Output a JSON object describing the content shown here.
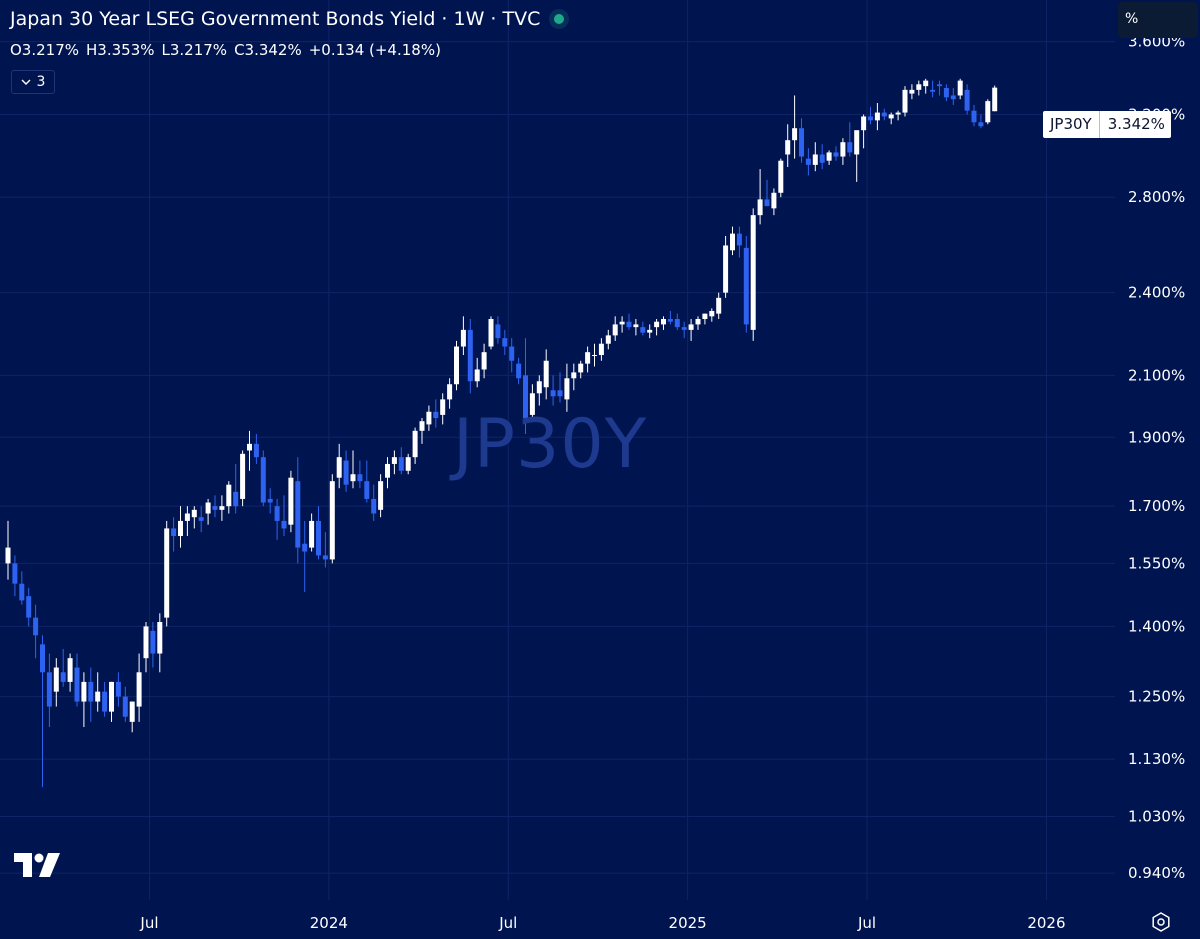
{
  "header": {
    "title": "Japan 30 Year LSEG Government Bonds Yield · 1W · TVC",
    "ohlc": {
      "open": "O3.217%",
      "high": "H3.353%",
      "low": "L3.217%",
      "close": "C3.342%",
      "change": "+0.134 (+4.18%)"
    },
    "indicator_count": "3"
  },
  "unit_label": "%",
  "watermark": "JP30Y",
  "last_price": {
    "symbol": "JP30Y",
    "value": "3.342%"
  },
  "colors": {
    "background": "#001450",
    "up_candle": "#ffffff",
    "down_candle": "#2d63f0",
    "grid": "#0f2466",
    "live_dot": "#1fa88a"
  },
  "icons": [
    "chevron-down-icon",
    "tradingview-logo",
    "settings-icon"
  ],
  "chart_data": {
    "type": "candlestick",
    "interval": "1W",
    "y_scale": "log",
    "ylim": [
      0.9,
      3.85
    ],
    "yticks": [
      {
        "v": 3.6,
        "l": "3.600%"
      },
      {
        "v": 3.2,
        "l": "3.200%"
      },
      {
        "v": 2.8,
        "l": "2.800%"
      },
      {
        "v": 2.4,
        "l": "2.400%"
      },
      {
        "v": 2.1,
        "l": "2.100%"
      },
      {
        "v": 1.9,
        "l": "1.900%"
      },
      {
        "v": 1.7,
        "l": "1.700%"
      },
      {
        "v": 1.55,
        "l": "1.550%"
      },
      {
        "v": 1.4,
        "l": "1.400%"
      },
      {
        "v": 1.25,
        "l": "1.250%"
      },
      {
        "v": 1.13,
        "l": "1.130%"
      },
      {
        "v": 1.03,
        "l": "1.030%"
      },
      {
        "v": 0.94,
        "l": "0.940%"
      }
    ],
    "xticks": [
      {
        "i": 20.5,
        "l": "Jul"
      },
      {
        "i": 46.5,
        "l": "2024"
      },
      {
        "i": 72.5,
        "l": "Jul"
      },
      {
        "i": 98.5,
        "l": "2025"
      },
      {
        "i": 124.5,
        "l": "Jul"
      },
      {
        "i": 150.5,
        "l": "2026"
      }
    ],
    "ohlc": [
      [
        1.55,
        1.66,
        1.51,
        1.59
      ],
      [
        1.55,
        1.57,
        1.47,
        1.5
      ],
      [
        1.5,
        1.53,
        1.45,
        1.46
      ],
      [
        1.47,
        1.49,
        1.4,
        1.42
      ],
      [
        1.42,
        1.45,
        1.33,
        1.38
      ],
      [
        1.36,
        1.38,
        1.08,
        1.3
      ],
      [
        1.3,
        1.34,
        1.19,
        1.23
      ],
      [
        1.26,
        1.33,
        1.23,
        1.31
      ],
      [
        1.3,
        1.35,
        1.27,
        1.28
      ],
      [
        1.28,
        1.34,
        1.26,
        1.33
      ],
      [
        1.31,
        1.34,
        1.23,
        1.24
      ],
      [
        1.24,
        1.3,
        1.19,
        1.28
      ],
      [
        1.28,
        1.31,
        1.2,
        1.24
      ],
      [
        1.24,
        1.3,
        1.22,
        1.26
      ],
      [
        1.26,
        1.28,
        1.21,
        1.22
      ],
      [
        1.22,
        1.28,
        1.2,
        1.28
      ],
      [
        1.28,
        1.3,
        1.23,
        1.25
      ],
      [
        1.25,
        1.27,
        1.2,
        1.21
      ],
      [
        1.2,
        1.24,
        1.18,
        1.24
      ],
      [
        1.23,
        1.34,
        1.2,
        1.3
      ],
      [
        1.33,
        1.41,
        1.3,
        1.4
      ],
      [
        1.39,
        1.41,
        1.31,
        1.34
      ],
      [
        1.34,
        1.43,
        1.3,
        1.41
      ],
      [
        1.42,
        1.66,
        1.4,
        1.64
      ],
      [
        1.64,
        1.67,
        1.58,
        1.62
      ],
      [
        1.62,
        1.7,
        1.59,
        1.66
      ],
      [
        1.66,
        1.7,
        1.62,
        1.68
      ],
      [
        1.67,
        1.7,
        1.64,
        1.69
      ],
      [
        1.67,
        1.7,
        1.63,
        1.66
      ],
      [
        1.68,
        1.72,
        1.65,
        1.71
      ],
      [
        1.7,
        1.73,
        1.67,
        1.69
      ],
      [
        1.69,
        1.73,
        1.66,
        1.7
      ],
      [
        1.7,
        1.77,
        1.68,
        1.76
      ],
      [
        1.74,
        1.82,
        1.68,
        1.7
      ],
      [
        1.72,
        1.86,
        1.7,
        1.85
      ],
      [
        1.86,
        1.92,
        1.8,
        1.88
      ],
      [
        1.88,
        1.91,
        1.82,
        1.84
      ],
      [
        1.84,
        1.86,
        1.7,
        1.71
      ],
      [
        1.72,
        1.75,
        1.68,
        1.71
      ],
      [
        1.7,
        1.72,
        1.61,
        1.66
      ],
      [
        1.66,
        1.73,
        1.62,
        1.64
      ],
      [
        1.65,
        1.8,
        1.63,
        1.78
      ],
      [
        1.77,
        1.84,
        1.55,
        1.59
      ],
      [
        1.6,
        1.66,
        1.48,
        1.58
      ],
      [
        1.59,
        1.68,
        1.58,
        1.66
      ],
      [
        1.66,
        1.7,
        1.56,
        1.57
      ],
      [
        1.57,
        1.63,
        1.54,
        1.56
      ],
      [
        1.56,
        1.79,
        1.55,
        1.77
      ],
      [
        1.78,
        1.88,
        1.75,
        1.84
      ],
      [
        1.83,
        1.86,
        1.74,
        1.76
      ],
      [
        1.77,
        1.86,
        1.75,
        1.79
      ],
      [
        1.79,
        1.83,
        1.75,
        1.77
      ],
      [
        1.77,
        1.83,
        1.71,
        1.72
      ],
      [
        1.72,
        1.76,
        1.66,
        1.68
      ],
      [
        1.69,
        1.79,
        1.67,
        1.77
      ],
      [
        1.78,
        1.84,
        1.75,
        1.82
      ],
      [
        1.82,
        1.86,
        1.79,
        1.84
      ],
      [
        1.84,
        1.87,
        1.79,
        1.8
      ],
      [
        1.8,
        1.85,
        1.79,
        1.84
      ],
      [
        1.84,
        1.93,
        1.82,
        1.92
      ],
      [
        1.92,
        1.96,
        1.88,
        1.95
      ],
      [
        1.94,
        2.0,
        1.92,
        1.98
      ],
      [
        1.98,
        2.02,
        1.93,
        1.96
      ],
      [
        1.97,
        2.04,
        1.94,
        2.02
      ],
      [
        2.02,
        2.09,
        1.99,
        2.07
      ],
      [
        2.07,
        2.22,
        2.05,
        2.2
      ],
      [
        2.2,
        2.31,
        2.17,
        2.26
      ],
      [
        2.26,
        2.3,
        2.04,
        2.08
      ],
      [
        2.08,
        2.16,
        2.06,
        2.12
      ],
      [
        2.12,
        2.21,
        2.09,
        2.18
      ],
      [
        2.2,
        2.31,
        2.19,
        2.3
      ],
      [
        2.28,
        2.31,
        2.21,
        2.23
      ],
      [
        2.23,
        2.26,
        2.17,
        2.2
      ],
      [
        2.2,
        2.23,
        2.11,
        2.15
      ],
      [
        2.14,
        2.16,
        2.07,
        2.09
      ],
      [
        2.1,
        2.23,
        1.91,
        1.96
      ],
      [
        1.97,
        2.07,
        1.95,
        2.04
      ],
      [
        2.04,
        2.1,
        2.0,
        2.08
      ],
      [
        2.06,
        2.19,
        2.02,
        2.15
      ],
      [
        2.05,
        2.1,
        2.0,
        2.03
      ],
      [
        2.05,
        2.11,
        2.01,
        2.03
      ],
      [
        2.02,
        2.14,
        1.98,
        2.09
      ],
      [
        2.09,
        2.14,
        2.05,
        2.11
      ],
      [
        2.11,
        2.15,
        2.09,
        2.14
      ],
      [
        2.14,
        2.2,
        2.11,
        2.18
      ],
      [
        2.17,
        2.21,
        2.13,
        2.17
      ],
      [
        2.17,
        2.23,
        2.15,
        2.21
      ],
      [
        2.21,
        2.26,
        2.19,
        2.24
      ],
      [
        2.24,
        2.31,
        2.22,
        2.28
      ],
      [
        2.28,
        2.31,
        2.25,
        2.29
      ],
      [
        2.29,
        2.32,
        2.26,
        2.27
      ],
      [
        2.27,
        2.3,
        2.24,
        2.28
      ],
      [
        2.27,
        2.29,
        2.24,
        2.25
      ],
      [
        2.25,
        2.28,
        2.23,
        2.26
      ],
      [
        2.27,
        2.3,
        2.24,
        2.29
      ],
      [
        2.28,
        2.31,
        2.26,
        2.3
      ],
      [
        2.3,
        2.33,
        2.28,
        2.29
      ],
      [
        2.3,
        2.32,
        2.26,
        2.27
      ],
      [
        2.27,
        2.29,
        2.23,
        2.26
      ],
      [
        2.26,
        2.3,
        2.22,
        2.28
      ],
      [
        2.28,
        2.31,
        2.26,
        2.3
      ],
      [
        2.3,
        2.32,
        2.28,
        2.32
      ],
      [
        2.31,
        2.34,
        2.29,
        2.33
      ],
      [
        2.32,
        2.4,
        2.3,
        2.38
      ],
      [
        2.4,
        2.63,
        2.38,
        2.59
      ],
      [
        2.57,
        2.67,
        2.55,
        2.64
      ],
      [
        2.64,
        2.67,
        2.54,
        2.59
      ],
      [
        2.58,
        2.63,
        2.25,
        2.28
      ],
      [
        2.26,
        2.75,
        2.22,
        2.72
      ],
      [
        2.72,
        2.93,
        2.68,
        2.79
      ],
      [
        2.79,
        2.88,
        2.76,
        2.76
      ],
      [
        2.75,
        2.84,
        2.72,
        2.82
      ],
      [
        2.82,
        2.98,
        2.8,
        2.97
      ],
      [
        3.0,
        3.15,
        2.94,
        3.07
      ],
      [
        3.07,
        3.3,
        2.98,
        3.13
      ],
      [
        3.13,
        3.18,
        2.96,
        2.99
      ],
      [
        2.98,
        3.03,
        2.9,
        2.95
      ],
      [
        2.95,
        3.06,
        2.92,
        3.0
      ],
      [
        3.0,
        3.05,
        2.93,
        2.96
      ],
      [
        2.97,
        3.02,
        2.95,
        3.01
      ],
      [
        3.01,
        3.04,
        2.97,
        2.99
      ],
      [
        2.99,
        3.08,
        2.95,
        3.06
      ],
      [
        3.06,
        3.16,
        2.99,
        3.01
      ],
      [
        3.0,
        3.1,
        2.87,
        3.12
      ],
      [
        3.12,
        3.2,
        3.03,
        3.19
      ],
      [
        3.19,
        3.24,
        3.15,
        3.17
      ],
      [
        3.17,
        3.26,
        3.12,
        3.21
      ],
      [
        3.21,
        3.23,
        3.17,
        3.19
      ],
      [
        3.18,
        3.21,
        3.15,
        3.2
      ],
      [
        3.2,
        3.22,
        3.17,
        3.21
      ],
      [
        3.21,
        3.35,
        3.19,
        3.33
      ],
      [
        3.31,
        3.36,
        3.28,
        3.33
      ],
      [
        3.33,
        3.38,
        3.3,
        3.36
      ],
      [
        3.35,
        3.39,
        3.31,
        3.38
      ],
      [
        3.33,
        3.38,
        3.29,
        3.32
      ],
      [
        3.36,
        3.38,
        3.3,
        3.35
      ],
      [
        3.34,
        3.36,
        3.27,
        3.29
      ],
      [
        3.3,
        3.34,
        3.25,
        3.28
      ],
      [
        3.3,
        3.39,
        3.28,
        3.38
      ],
      [
        3.33,
        3.36,
        3.2,
        3.22
      ],
      [
        3.22,
        3.25,
        3.14,
        3.16
      ],
      [
        3.16,
        3.2,
        3.13,
        3.14
      ],
      [
        3.16,
        3.28,
        3.15,
        3.27
      ],
      [
        3.217,
        3.353,
        3.217,
        3.342
      ]
    ]
  }
}
